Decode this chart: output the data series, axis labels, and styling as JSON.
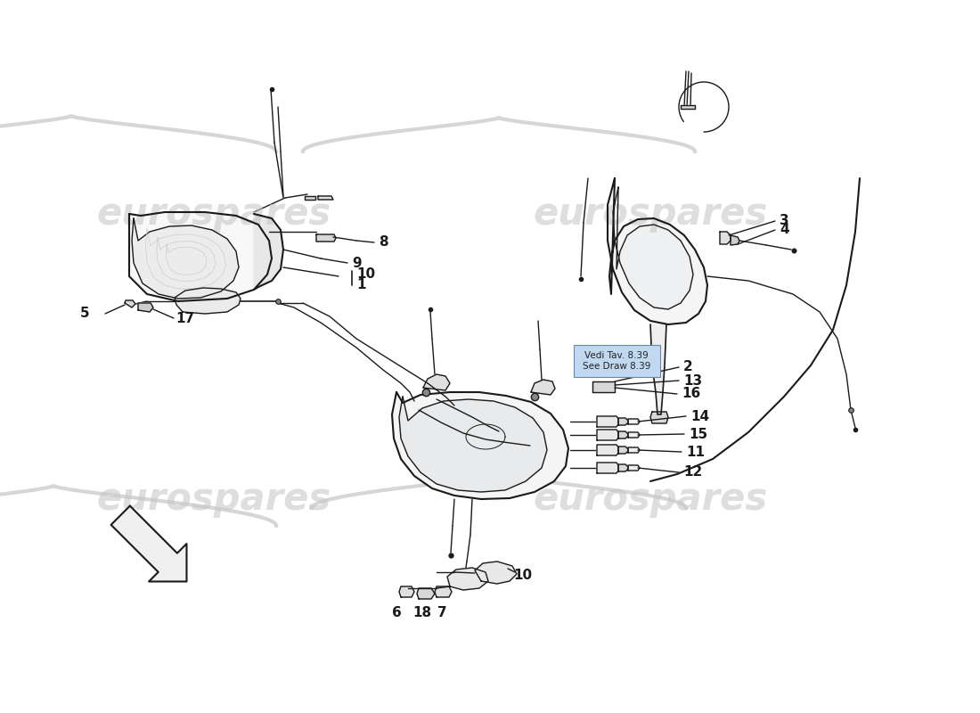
{
  "background_color": "#ffffff",
  "watermark_text": "eurospares",
  "watermark_color": "#c8c8c8",
  "line_color": "#1a1a1a",
  "note_text": "Vedi Tav. 8.39\nSee Draw 8.39",
  "note_bg": "#c0d8f0",
  "lw_main": 1.5,
  "lw_thin": 1.0,
  "lw_med": 1.2
}
